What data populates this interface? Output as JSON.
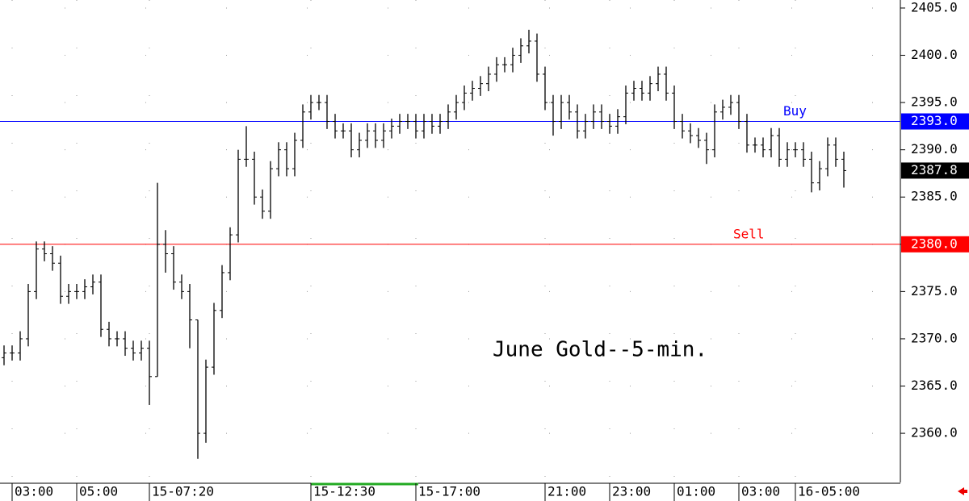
{
  "chart_data": {
    "type": "ohlc",
    "annotation": "June Gold--5-min.",
    "categories": [
      null,
      "03:00",
      null,
      null,
      null,
      null,
      null,
      null,
      null,
      "05:00",
      null,
      null,
      null,
      null,
      null,
      null,
      null,
      null,
      "15-07:20",
      null,
      null,
      null,
      null,
      null,
      null,
      null,
      null,
      null,
      null,
      null,
      null,
      null,
      null,
      null,
      null,
      null,
      null,
      null,
      "15-12:30",
      null,
      null,
      null,
      null,
      null,
      null,
      null,
      null,
      null,
      null,
      null,
      null,
      "15-17:00",
      null,
      null,
      null,
      null,
      null,
      null,
      null,
      null,
      null,
      null,
      null,
      null,
      null,
      null,
      null,
      "21:00",
      null,
      null,
      null,
      null,
      null,
      null,
      null,
      "23:00",
      null,
      null,
      null,
      null,
      null,
      null,
      null,
      "01:00",
      null,
      null,
      null,
      null,
      null,
      null,
      null,
      "03:00",
      null,
      null,
      null,
      null,
      null,
      null,
      "16-05:00",
      null,
      null,
      null,
      null,
      null,
      null
    ],
    "open": [
      2368,
      2368.5,
      2368.5,
      2370,
      2375,
      2379.5,
      2379,
      2378,
      2374.5,
      2375,
      2375,
      2375.5,
      2376,
      2371,
      2370,
      2370,
      2369,
      2368.5,
      2369,
      2366,
      2380,
      2379,
      2376,
      2375,
      2372,
      2360,
      2367,
      2373,
      2377,
      2381,
      2389,
      2389,
      2385,
      2383.5,
      2388,
      2390,
      2388,
      2391,
      2394,
      2395,
      2395,
      2393,
      2392,
      2392,
      2390,
      2391,
      2392,
      2391,
      2392,
      2392.5,
      2393,
      2393,
      2392,
      2393,
      2392.5,
      2393,
      2394,
      2395,
      2396,
      2396.5,
      2397,
      2398,
      2399,
      2399,
      2400,
      2401,
      2401.5,
      2398,
      2395,
      2393,
      2395,
      2394,
      2392,
      2393,
      2394,
      2393,
      2392.5,
      2393.5,
      2396,
      2396.5,
      2396,
      2397,
      2398,
      2396,
      2393,
      2392,
      2391.5,
      2391,
      2390,
      2394,
      2394.5,
      2395,
      2393,
      2390.5,
      2390.5,
      2390,
      2391.5,
      2389,
      2390,
      2390,
      2389,
      2386.5,
      2388,
      2390.5,
      2389
    ],
    "high": [
      2369.3,
      2369.3,
      2370.8,
      2375.8,
      2380.3,
      2380.3,
      2379.8,
      2378.8,
      2375.8,
      2375.8,
      2376.3,
      2376.8,
      2376.8,
      2371.8,
      2370.8,
      2370.8,
      2369.8,
      2369.8,
      2369.8,
      2386.5,
      2381.5,
      2379.8,
      2376.8,
      2375.8,
      2372,
      2367.8,
      2373.8,
      2377.8,
      2381.8,
      2390,
      2392.5,
      2389.8,
      2385.8,
      2388.8,
      2390.8,
      2390.8,
      2391.8,
      2394.8,
      2395.8,
      2395.8,
      2395.8,
      2393.8,
      2392.8,
      2392.8,
      2391.8,
      2392.8,
      2392.8,
      2392.8,
      2393.3,
      2393.8,
      2393.8,
      2393.8,
      2393.8,
      2393.8,
      2393.8,
      2394.8,
      2395.8,
      2396.8,
      2397.3,
      2397.8,
      2398.8,
      2399.8,
      2399.8,
      2400.8,
      2401.8,
      2402.7,
      2402.3,
      2398.8,
      2395.8,
      2395.8,
      2395.8,
      2394.8,
      2393.8,
      2394.8,
      2394.8,
      2393.8,
      2394.3,
      2396.8,
      2397.3,
      2397.3,
      2397.8,
      2398.8,
      2398.8,
      2396.8,
      2393.8,
      2392.8,
      2392.3,
      2391.8,
      2394.8,
      2395.3,
      2395.8,
      2395.8,
      2393.8,
      2391.3,
      2391.3,
      2392.3,
      2392.3,
      2390.8,
      2390.8,
      2390.8,
      2389.8,
      2388.8,
      2391.3,
      2391.3,
      2389.8
    ],
    "low": [
      2367.2,
      2367.7,
      2367.7,
      2369.2,
      2374.2,
      2378.2,
      2377.2,
      2373.7,
      2373.7,
      2374.2,
      2374.2,
      2374.7,
      2370.2,
      2369.2,
      2369.2,
      2368.2,
      2367.7,
      2367.7,
      2363,
      2366,
      2377,
      2375.2,
      2374.2,
      2369,
      2357.3,
      2359,
      2366.2,
      2372.2,
      2376.2,
      2380.2,
      2388.2,
      2384.2,
      2382.7,
      2382.7,
      2387.2,
      2387.2,
      2387.2,
      2390.2,
      2393.2,
      2394.2,
      2392.2,
      2391.2,
      2391.2,
      2389.2,
      2389.2,
      2390.2,
      2390.2,
      2390.2,
      2391.2,
      2391.7,
      2392.2,
      2391.2,
      2391.2,
      2391.7,
      2391.7,
      2392.2,
      2393.2,
      2394.2,
      2395.2,
      2395.7,
      2396.2,
      2397.2,
      2398.2,
      2398.2,
      2399.2,
      2400.2,
      2397.2,
      2394.2,
      2391.5,
      2392.2,
      2393.2,
      2391.2,
      2391.2,
      2392.2,
      2392.2,
      2391.7,
      2391.7,
      2392.7,
      2395.2,
      2395.2,
      2395.2,
      2396.2,
      2395.2,
      2392.2,
      2391.2,
      2390.7,
      2390.2,
      2388.5,
      2389.2,
      2393.2,
      2393.7,
      2392.2,
      2389.7,
      2389.7,
      2389.2,
      2389.2,
      2388.2,
      2388.2,
      2389.2,
      2388.2,
      2385.5,
      2385.7,
      2387.2,
      2388.2,
      2386
    ],
    "close": [
      2368.5,
      2368.5,
      2370,
      2375,
      2379.5,
      2379,
      2378,
      2374.5,
      2375,
      2375,
      2375.5,
      2376,
      2371,
      2370,
      2370,
      2369,
      2368.5,
      2369,
      2366,
      2380,
      2379,
      2376,
      2375,
      2372,
      2360,
      2367,
      2373,
      2377,
      2381,
      2389,
      2389,
      2385,
      2383.5,
      2388,
      2390,
      2388,
      2391,
      2394,
      2395,
      2395,
      2393,
      2392,
      2392,
      2390,
      2391,
      2392,
      2391,
      2392,
      2392.5,
      2393,
      2393,
      2392,
      2393,
      2392.5,
      2393,
      2394,
      2395,
      2396,
      2396.5,
      2397,
      2398,
      2399,
      2399,
      2400,
      2401,
      2401.5,
      2398,
      2395,
      2393,
      2395,
      2394,
      2392,
      2393,
      2394,
      2393,
      2392.5,
      2393.5,
      2396,
      2396.5,
      2396,
      2397,
      2398,
      2396,
      2393,
      2392,
      2391.5,
      2391,
      2390,
      2394,
      2394.5,
      2395,
      2393,
      2390.5,
      2390.5,
      2390,
      2391.5,
      2389,
      2390,
      2390,
      2389,
      2386.5,
      2388,
      2390.5,
      2389,
      2387.8
    ],
    "color": "#000000",
    "ylim": [
      2354.8,
      2405.85
    ],
    "yticks": [
      {
        "value": 2360,
        "label": "2360.0"
      },
      {
        "value": 2365,
        "label": "2365.0"
      },
      {
        "value": 2370,
        "label": "2370.0"
      },
      {
        "value": 2375,
        "label": "2375.0"
      },
      {
        "value": 2380,
        "label": "2380.0"
      },
      {
        "value": 2385,
        "label": "2385.0"
      },
      {
        "value": 2390,
        "label": "2390.0"
      },
      {
        "value": 2395,
        "label": "2395.0"
      },
      {
        "value": 2400,
        "label": "2400.0"
      },
      {
        "value": 2405,
        "label": "2405.0"
      }
    ],
    "lines": [
      {
        "name": "Buy",
        "value": 2393,
        "label": "2393.0",
        "color": "#0000ff"
      },
      {
        "name": "Sell",
        "value": 2380,
        "label": "2380.0",
        "color": "#ff0000"
      }
    ],
    "last_price": 2387.8,
    "grid": true
  }
}
